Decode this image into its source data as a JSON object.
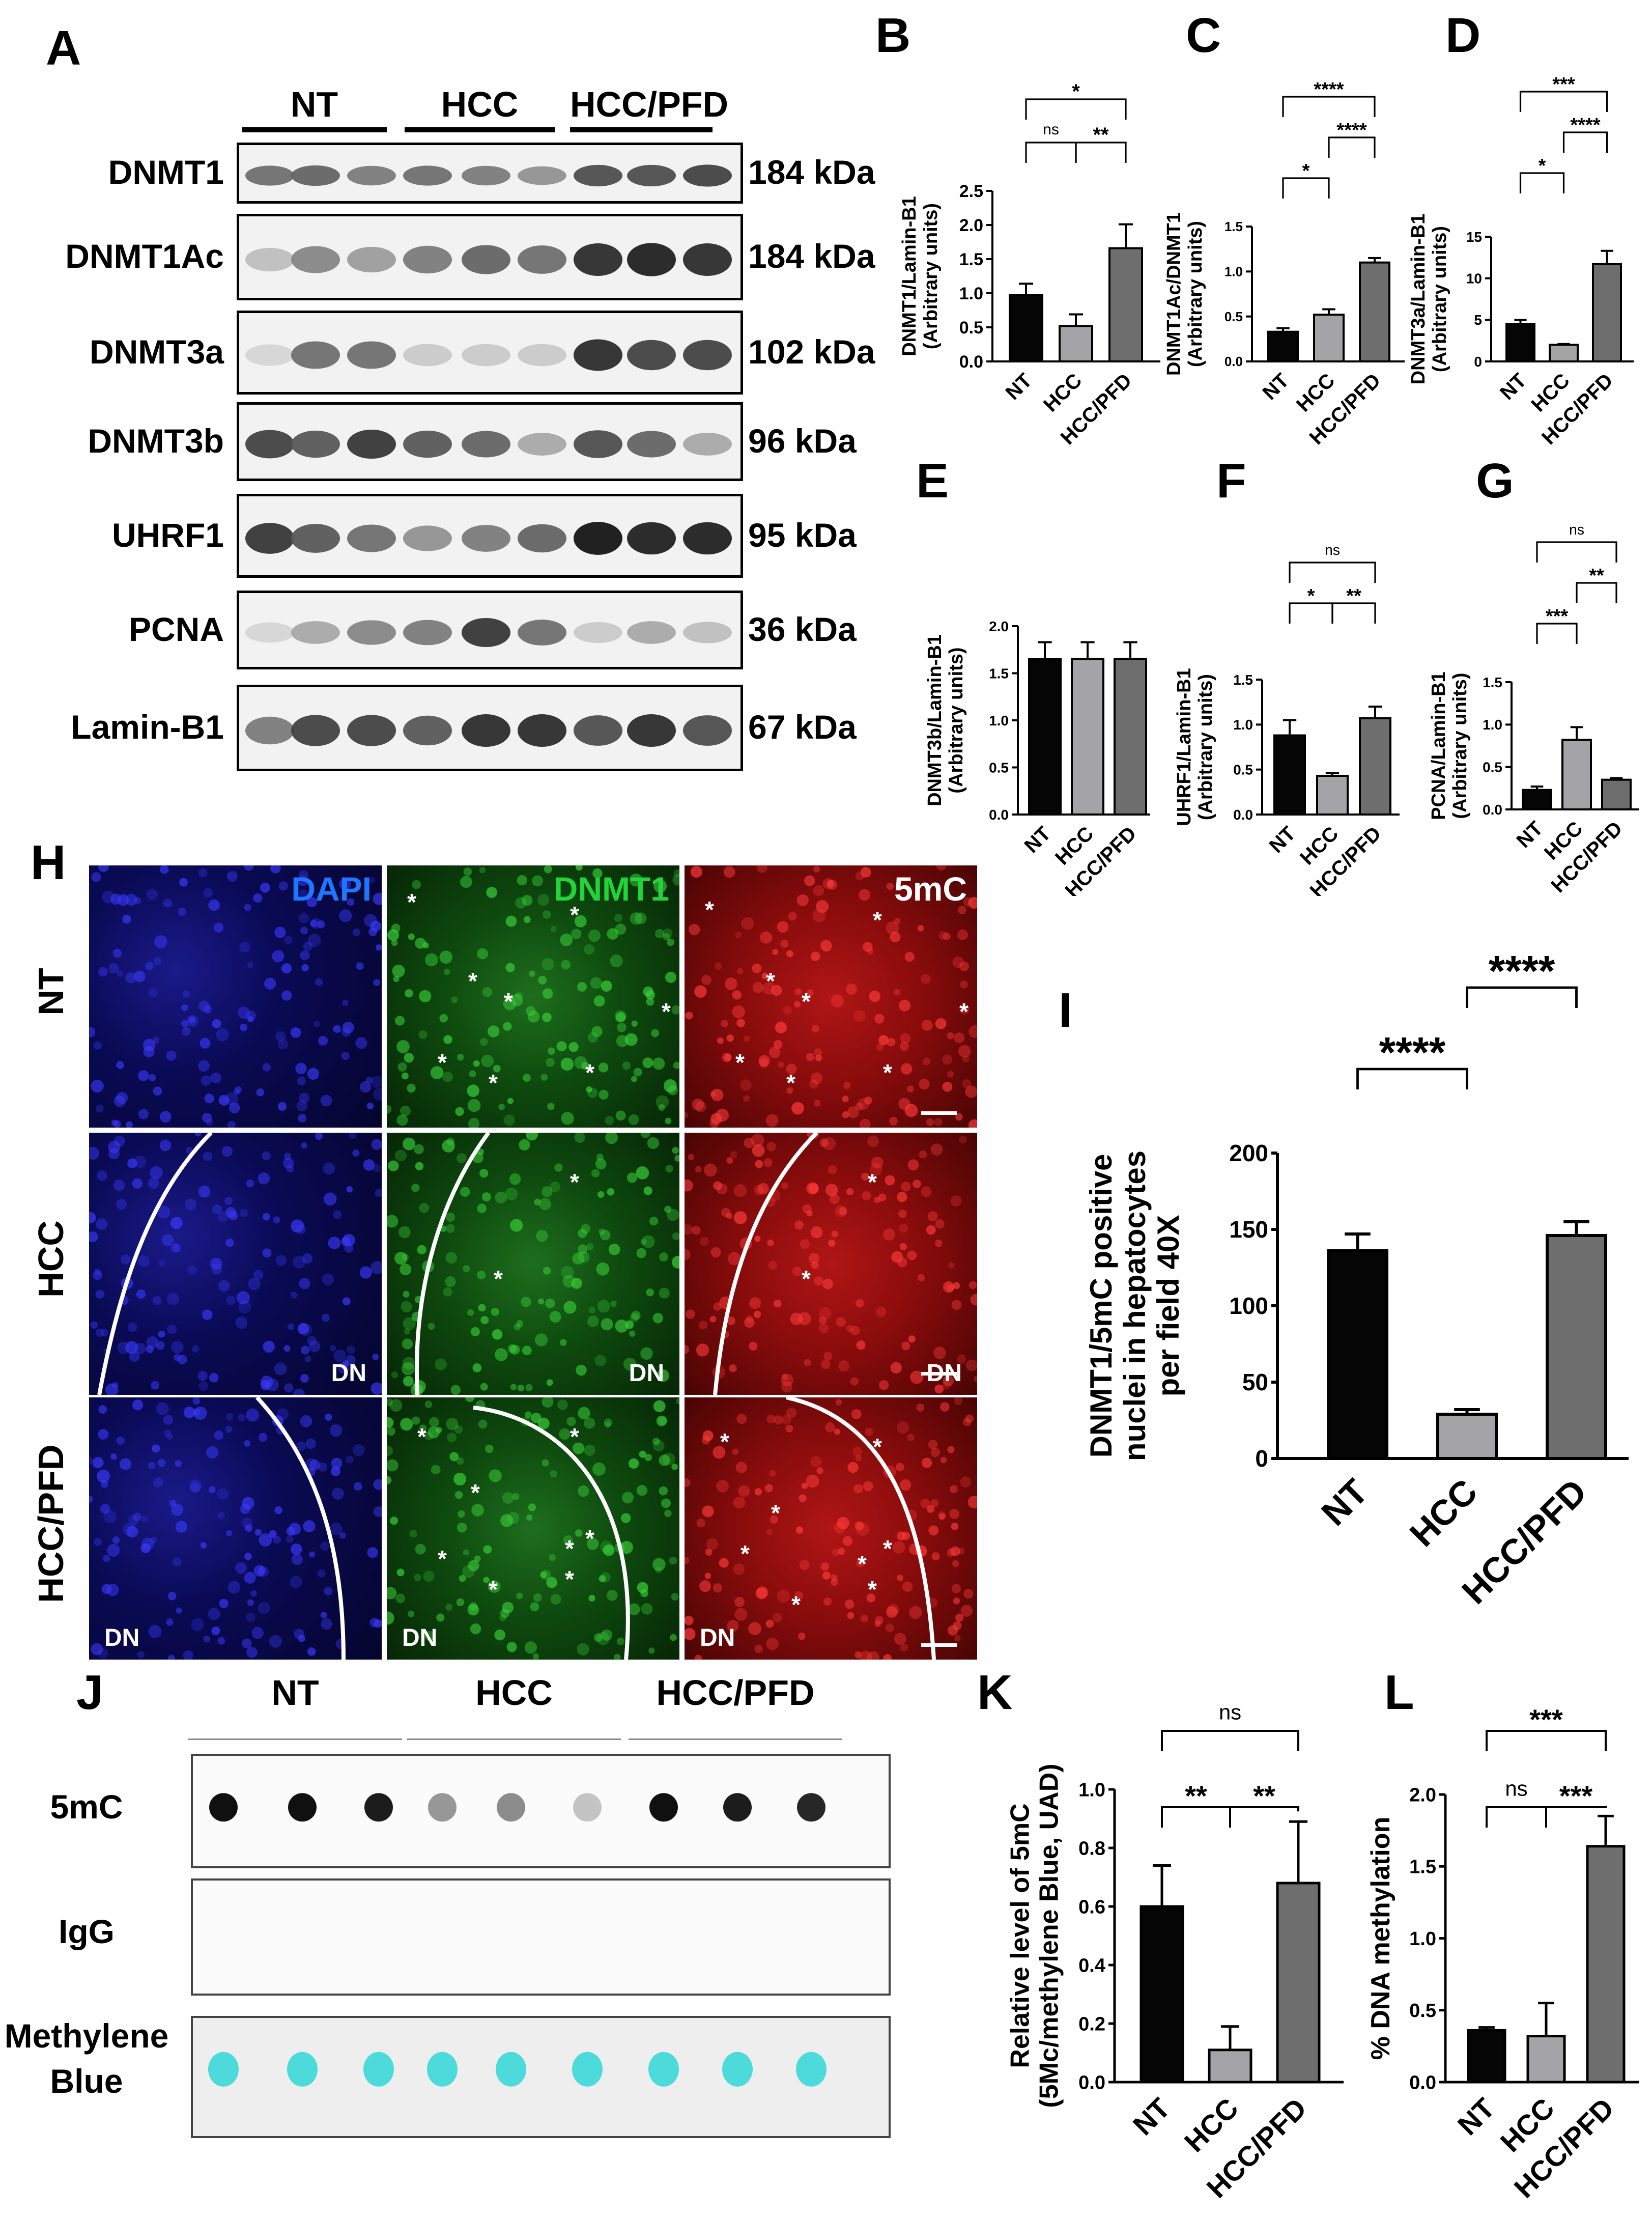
{
  "panel_letters": {
    "A": "A",
    "B": "B",
    "C": "C",
    "D": "D",
    "E": "E",
    "F": "F",
    "G": "G",
    "H": "H",
    "I": "I",
    "J": "J",
    "K": "K",
    "L": "L"
  },
  "western": {
    "groups": [
      "NT",
      "HCC",
      "HCC/PFD"
    ],
    "rows": [
      {
        "label": "DNMT1",
        "kda": "184 kDa"
      },
      {
        "label": "DNMT1Ac",
        "kda": "184 kDa"
      },
      {
        "label": "DNMT3a",
        "kda": "102 kDa"
      },
      {
        "label": "DNMT3b",
        "kda": "96 kDa"
      },
      {
        "label": "UHRF1",
        "kda": "95 kDa"
      },
      {
        "label": "PCNA",
        "kda": "36 kDa"
      },
      {
        "label": "Lamin-B1",
        "kda": "67 kDa"
      }
    ],
    "band_intensity": [
      [
        0.55,
        0.6,
        0.5,
        0.55,
        0.5,
        0.4,
        0.7,
        0.7,
        0.75
      ],
      [
        0.2,
        0.45,
        0.35,
        0.5,
        0.6,
        0.55,
        0.85,
        0.9,
        0.85
      ],
      [
        0.1,
        0.55,
        0.55,
        0.15,
        0.15,
        0.15,
        0.85,
        0.75,
        0.75
      ],
      [
        0.75,
        0.65,
        0.8,
        0.65,
        0.6,
        0.3,
        0.7,
        0.6,
        0.3
      ],
      [
        0.8,
        0.65,
        0.55,
        0.4,
        0.5,
        0.6,
        0.95,
        0.9,
        0.9
      ],
      [
        0.1,
        0.3,
        0.45,
        0.5,
        0.8,
        0.55,
        0.15,
        0.3,
        0.2
      ],
      [
        0.5,
        0.75,
        0.75,
        0.65,
        0.85,
        0.85,
        0.7,
        0.85,
        0.7
      ]
    ]
  },
  "microscopy": {
    "stains": [
      "DAPI",
      "DNMT1",
      "5mC"
    ],
    "rows": [
      "NT",
      "HCC",
      "HCC/PFD"
    ],
    "dn_label": "DN",
    "asterisk": "*"
  },
  "dotblot": {
    "groups": [
      "NT",
      "HCC",
      "HCC/PFD"
    ],
    "rows": [
      "5mC",
      "IgG",
      "Methylene Blue"
    ],
    "dot_5mc_intensity": [
      0.95,
      0.95,
      0.9,
      0.35,
      0.4,
      0.15,
      0.95,
      0.9,
      0.85
    ],
    "accent_cyan": "#2fd6d6"
  },
  "chart_data": [
    {
      "id": "B",
      "type": "bar",
      "categories": [
        "NT",
        "HCC",
        "HCC/PFD"
      ],
      "values": [
        0.97,
        0.52,
        1.66
      ],
      "errors": [
        0.17,
        0.17,
        0.35
      ],
      "ylabel": "DNMT1/Lamin-B1\n(Arbitrary units)",
      "ylim": [
        0,
        2.5
      ],
      "ticks": [
        "0.0",
        "0.5",
        "1.0",
        "1.5",
        "2.0",
        "2.5"
      ],
      "tick_values": [
        0,
        0.5,
        1.0,
        1.5,
        2.0,
        2.5
      ],
      "sig": [
        {
          "from": 0,
          "to": 1,
          "label": "ns",
          "level": 1
        },
        {
          "from": 1,
          "to": 2,
          "label": "**",
          "level": 1
        },
        {
          "from": 0,
          "to": 2,
          "label": "*",
          "level": 2
        }
      ]
    },
    {
      "id": "C",
      "type": "bar",
      "categories": [
        "NT",
        "HCC",
        "HCC/PFD"
      ],
      "values": [
        0.33,
        0.52,
        1.1
      ],
      "errors": [
        0.04,
        0.06,
        0.05
      ],
      "ylabel": "DNMT1Ac/DNMT1\n(Arbitrary units)",
      "ylim": [
        0,
        1.5
      ],
      "ticks": [
        "0.0",
        "0.5",
        "1.0",
        "1.5"
      ],
      "tick_values": [
        0,
        0.5,
        1.0,
        1.5
      ],
      "sig": [
        {
          "from": 0,
          "to": 1,
          "label": "*",
          "level": 1
        },
        {
          "from": 1,
          "to": 2,
          "label": "****",
          "level": 2
        },
        {
          "from": 0,
          "to": 2,
          "label": "****",
          "level": 3
        }
      ]
    },
    {
      "id": "D",
      "type": "bar",
      "categories": [
        "NT",
        "HCC",
        "HCC/PFD"
      ],
      "values": [
        4.5,
        2.0,
        11.7
      ],
      "errors": [
        0.5,
        0.1,
        1.6
      ],
      "ylabel": "DNMT3a/Lamin-B1\n(Arbitrary units)",
      "ylim": [
        0,
        15
      ],
      "ticks": [
        "0",
        "5",
        "10",
        "15"
      ],
      "tick_values": [
        0,
        5,
        10,
        15
      ],
      "sig": [
        {
          "from": 0,
          "to": 1,
          "label": "*",
          "level": 1
        },
        {
          "from": 1,
          "to": 2,
          "label": "****",
          "level": 2
        },
        {
          "from": 0,
          "to": 2,
          "label": "***",
          "level": 3
        }
      ]
    },
    {
      "id": "E",
      "type": "bar",
      "categories": [
        "NT",
        "HCC",
        "HCC/PFD"
      ],
      "values": [
        1.65,
        1.65,
        1.65
      ],
      "errors": [
        0.18,
        0.18,
        0.18
      ],
      "ylabel": "DNMT3b/Lamin-B1\n(Arbitrary units)",
      "ylim": [
        0,
        2.0
      ],
      "ticks": [
        "0.0",
        "0.5",
        "1.0",
        "1.5",
        "2.0"
      ],
      "tick_values": [
        0,
        0.5,
        1.0,
        1.5,
        2.0
      ],
      "sig": []
    },
    {
      "id": "F",
      "type": "bar",
      "categories": [
        "NT",
        "HCC",
        "HCC/PFD"
      ],
      "values": [
        0.88,
        0.43,
        1.07
      ],
      "errors": [
        0.17,
        0.03,
        0.13
      ],
      "ylabel": "UHRF1/Lamin-B1\n(Arbitrary units)",
      "ylim": [
        0,
        1.5
      ],
      "ticks": [
        "0.0",
        "0.5",
        "1.0",
        "1.5"
      ],
      "tick_values": [
        0,
        0.5,
        1.0,
        1.5
      ],
      "sig": [
        {
          "from": 0,
          "to": 1,
          "label": "*",
          "level": 1
        },
        {
          "from": 1,
          "to": 2,
          "label": "**",
          "level": 1
        },
        {
          "from": 0,
          "to": 2,
          "label": "ns",
          "level": 2
        }
      ]
    },
    {
      "id": "G",
      "type": "bar",
      "categories": [
        "NT",
        "HCC",
        "HCC/PFD"
      ],
      "values": [
        0.23,
        0.82,
        0.35
      ],
      "errors": [
        0.04,
        0.15,
        0.02
      ],
      "ylabel": "PCNA/Lamin-B1\n(Arbitrary units)",
      "ylim": [
        0,
        1.5
      ],
      "ticks": [
        "0.0",
        "0.5",
        "1.0",
        "1.5"
      ],
      "tick_values": [
        0,
        0.5,
        1.0,
        1.5
      ],
      "sig": [
        {
          "from": 0,
          "to": 1,
          "label": "***",
          "level": 1
        },
        {
          "from": 1,
          "to": 2,
          "label": "**",
          "level": 2
        },
        {
          "from": 0,
          "to": 2,
          "label": "ns",
          "level": 3
        }
      ]
    },
    {
      "id": "I",
      "type": "bar",
      "categories": [
        "NT",
        "HCC",
        "HCC/PFD"
      ],
      "values": [
        136,
        29,
        146
      ],
      "errors": [
        11,
        3,
        9
      ],
      "ylabel": "DNMT1/5mC positive\nnuclei in hepatocytes\nper field 40X",
      "ylim": [
        0,
        200
      ],
      "ticks": [
        "0",
        "50",
        "100",
        "150",
        "200"
      ],
      "tick_values": [
        0,
        50,
        100,
        150,
        200
      ],
      "sig": [
        {
          "from": 0,
          "to": 1,
          "label": "****",
          "level": 1
        },
        {
          "from": 1,
          "to": 2,
          "label": "****",
          "level": 2
        }
      ]
    },
    {
      "id": "K",
      "type": "bar",
      "categories": [
        "NT",
        "HCC",
        "HCC/PFD"
      ],
      "values": [
        0.6,
        0.11,
        0.68
      ],
      "errors": [
        0.14,
        0.08,
        0.21
      ],
      "ylabel": "Relative level of 5mC\n(5Mc/methylene Blue, UAD)",
      "ylim": [
        0,
        1.0
      ],
      "ticks": [
        "0.0",
        "0.2",
        "0.4",
        "0.6",
        "0.8",
        "1.0"
      ],
      "tick_values": [
        0,
        0.2,
        0.4,
        0.6,
        0.8,
        1.0
      ],
      "sig": [
        {
          "from": 0,
          "to": 1,
          "label": "**",
          "level": 1
        },
        {
          "from": 1,
          "to": 2,
          "label": "**",
          "level": 1
        },
        {
          "from": 0,
          "to": 2,
          "label": "ns",
          "level": 2
        }
      ]
    },
    {
      "id": "L",
      "type": "bar",
      "categories": [
        "NT",
        "HCC",
        "HCC/PFD"
      ],
      "values": [
        0.36,
        0.32,
        1.64
      ],
      "errors": [
        0.02,
        0.23,
        0.21
      ],
      "ylabel": "% DNA methylation",
      "ylim": [
        0,
        2.0
      ],
      "ticks": [
        "0.0",
        "0.5",
        "1.0",
        "1.5",
        "2.0"
      ],
      "tick_values": [
        0,
        0.5,
        1.0,
        1.5,
        2.0
      ],
      "sig": [
        {
          "from": 0,
          "to": 1,
          "label": "ns",
          "level": 1
        },
        {
          "from": 1,
          "to": 2,
          "label": "***",
          "level": 1
        },
        {
          "from": 0,
          "to": 2,
          "label": "***",
          "level": 2
        }
      ]
    }
  ],
  "bar_colors": [
    "#050505",
    "#a4a4a8",
    "#6e6e6e"
  ]
}
